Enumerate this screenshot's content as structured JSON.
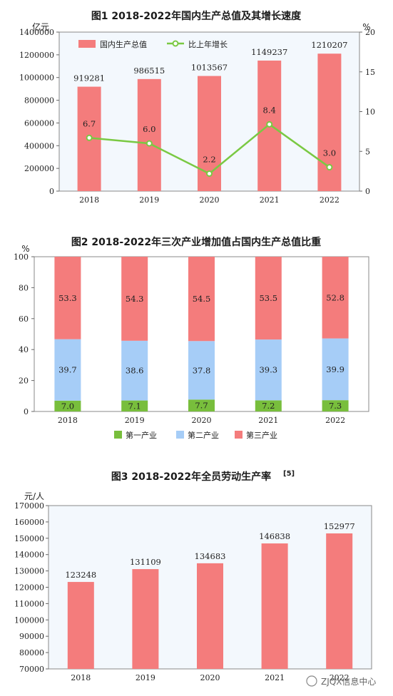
{
  "colors": {
    "bar": "#f47c7c",
    "line": "#7ac943",
    "secondary": "#a6cdf7",
    "tertiary": "#f47c7c",
    "primary": "#78be3c",
    "plotbg": "#f3f8fd"
  },
  "watermark": "ZJQX信息中心",
  "chart_data": [
    {
      "type": "bar",
      "title": "图1   2018-2022年国内生产总值及其增长速度",
      "ylabel_left": "亿元",
      "ylabel_right": "%",
      "categories": [
        "2018",
        "2019",
        "2020",
        "2021",
        "2022"
      ],
      "ylim": [
        0,
        1400000
      ],
      "ylim_right": [
        0,
        20
      ],
      "yticks": [
        "0",
        "200000",
        "400000",
        "600000",
        "800000",
        "1000000",
        "1200000",
        "1400000"
      ],
      "yticks_right": [
        "0",
        "5",
        "10",
        "15",
        "20"
      ],
      "legend_position": "top",
      "series": [
        {
          "name": "国内生产总值",
          "kind": "bar",
          "values": [
            919281,
            986515,
            1013567,
            1149237,
            1210207
          ],
          "labels": [
            "919281",
            "986515",
            "1013567",
            "1149237",
            "1210207"
          ]
        },
        {
          "name": "比上年增长",
          "kind": "line",
          "axis": "right",
          "values": [
            6.7,
            6.0,
            2.2,
            8.4,
            3.0
          ],
          "labels": [
            "6.7",
            "6.0",
            "2.2",
            "8.4",
            "3.0"
          ]
        }
      ]
    },
    {
      "type": "bar",
      "stacked": true,
      "title": "图2  2018-2022年三次产业增加值占国内生产总值比重",
      "ylabel": "%",
      "categories": [
        "2018",
        "2019",
        "2020",
        "2021",
        "2022"
      ],
      "ylim": [
        0,
        100
      ],
      "yticks": [
        "0",
        "20",
        "40",
        "60",
        "80",
        "100"
      ],
      "legend_position": "bottom",
      "series": [
        {
          "name": "第一产业",
          "values": [
            7.0,
            7.1,
            7.7,
            7.2,
            7.3
          ],
          "labels": [
            "7.0",
            "7.1",
            "7.7",
            "7.2",
            "7.3"
          ]
        },
        {
          "name": "第二产业",
          "values": [
            39.7,
            38.6,
            37.8,
            39.3,
            39.9
          ],
          "labels": [
            "39.7",
            "38.6",
            "37.8",
            "39.3",
            "39.9"
          ]
        },
        {
          "name": "第三产业",
          "values": [
            53.3,
            54.3,
            54.5,
            53.5,
            52.8
          ],
          "labels": [
            "53.3",
            "54.3",
            "54.5",
            "53.5",
            "52.8"
          ]
        }
      ]
    },
    {
      "type": "bar",
      "title": "图3   2018-2022年全员劳动生产率",
      "title_sup": "[5]",
      "ylabel": "元/人",
      "categories": [
        "2018",
        "2019",
        "2020",
        "2021",
        "2022"
      ],
      "ylim": [
        70000,
        170000
      ],
      "yticks": [
        "70000",
        "80000",
        "90000",
        "100000",
        "110000",
        "120000",
        "130000",
        "140000",
        "150000",
        "160000",
        "170000"
      ],
      "series": [
        {
          "name": "",
          "values": [
            123248,
            131109,
            134683,
            146838,
            152977
          ],
          "labels": [
            "123248",
            "131109",
            "134683",
            "146838",
            "152977"
          ]
        }
      ]
    }
  ]
}
